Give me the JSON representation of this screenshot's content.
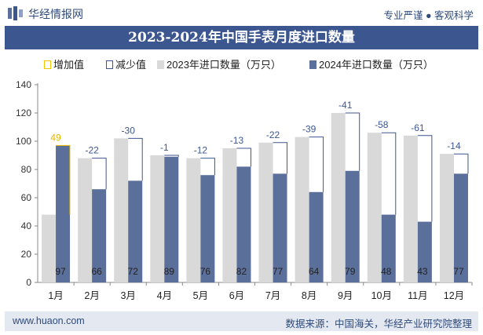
{
  "header": {
    "brand": "华经情报网",
    "slogan": "专业严谨 ● 客观科学"
  },
  "title": "2023-2024年中国手表月度进口数量",
  "footer": {
    "url": "www.huaon.com",
    "source": "数据来源：中国海关，华经产业研究院整理"
  },
  "colors": {
    "bar2023": "#d9d9d9",
    "bar2024": "#5b6f9b",
    "increase": "#f5c400",
    "decrease": "#3c5690",
    "title_bg": "#3c5690",
    "footer_bg": "#e3e8f1"
  },
  "legend": {
    "increase": "增加值",
    "decrease": "减少值",
    "s2023": "2023年进口数量（万只）",
    "s2024": "2024年进口数量（万只）"
  },
  "chart_data": {
    "type": "bar",
    "categories": [
      "1月",
      "2月",
      "3月",
      "4月",
      "5月",
      "6月",
      "7月",
      "8月",
      "9月",
      "10月",
      "11月",
      "12月"
    ],
    "series": [
      {
        "name": "2023年进口数量（万只）",
        "values": [
          48,
          88,
          102,
          90,
          88,
          95,
          99,
          103,
          120,
          106,
          104,
          91
        ]
      },
      {
        "name": "2024年进口数量（万只）",
        "values": [
          97,
          66,
          72,
          89,
          76,
          82,
          77,
          64,
          79,
          48,
          43,
          77
        ]
      }
    ],
    "changes": [
      49,
      -22,
      -30,
      -1,
      -12,
      -13,
      -22,
      -39,
      -41,
      -58,
      -61,
      -14
    ],
    "ylim": [
      0,
      140
    ],
    "yticks": [
      0,
      20,
      40,
      60,
      80,
      100,
      120,
      140
    ],
    "grid": false,
    "legend_position": "top"
  }
}
